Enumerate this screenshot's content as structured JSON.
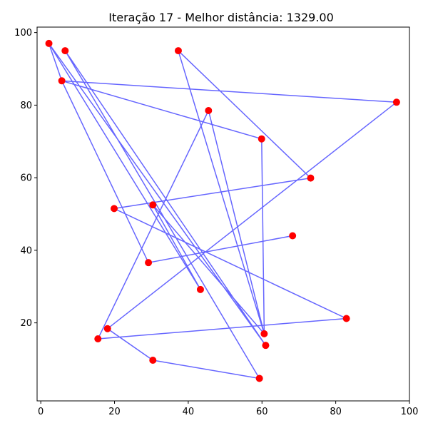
{
  "chart_data": {
    "type": "line",
    "title": "Iteração 17 - Melhor distância: 1329.00",
    "xlabel": "",
    "ylabel": "",
    "xlim": [
      -1,
      100
    ],
    "ylim": [
      -1.5,
      101.5
    ],
    "xticks": [
      0,
      20,
      40,
      60,
      80,
      100
    ],
    "yticks": [
      20,
      40,
      60,
      80,
      100
    ],
    "grid": false,
    "line_color": "#0000ff",
    "point_color": "#ff0000",
    "tour": [
      [
        2.2,
        97.0
      ],
      [
        5.7,
        86.7
      ],
      [
        96.5,
        80.8
      ],
      [
        18.1,
        18.4
      ],
      [
        30.4,
        9.7
      ],
      [
        59.3,
        4.7
      ],
      [
        6.6,
        95.0
      ],
      [
        61.0,
        13.8
      ],
      [
        2.2,
        97.0
      ],
      [
        43.3,
        29.2
      ],
      [
        30.4,
        52.5
      ],
      [
        60.6,
        17.0
      ],
      [
        45.5,
        78.5
      ],
      [
        15.5,
        15.6
      ],
      [
        82.9,
        21.2
      ],
      [
        19.9,
        51.5
      ],
      [
        73.2,
        59.9
      ],
      [
        37.3,
        95.0
      ],
      [
        60.6,
        17.0
      ],
      [
        59.9,
        70.7
      ],
      [
        5.7,
        86.7
      ],
      [
        29.2,
        36.6
      ],
      [
        68.3,
        44.0
      ]
    ]
  }
}
